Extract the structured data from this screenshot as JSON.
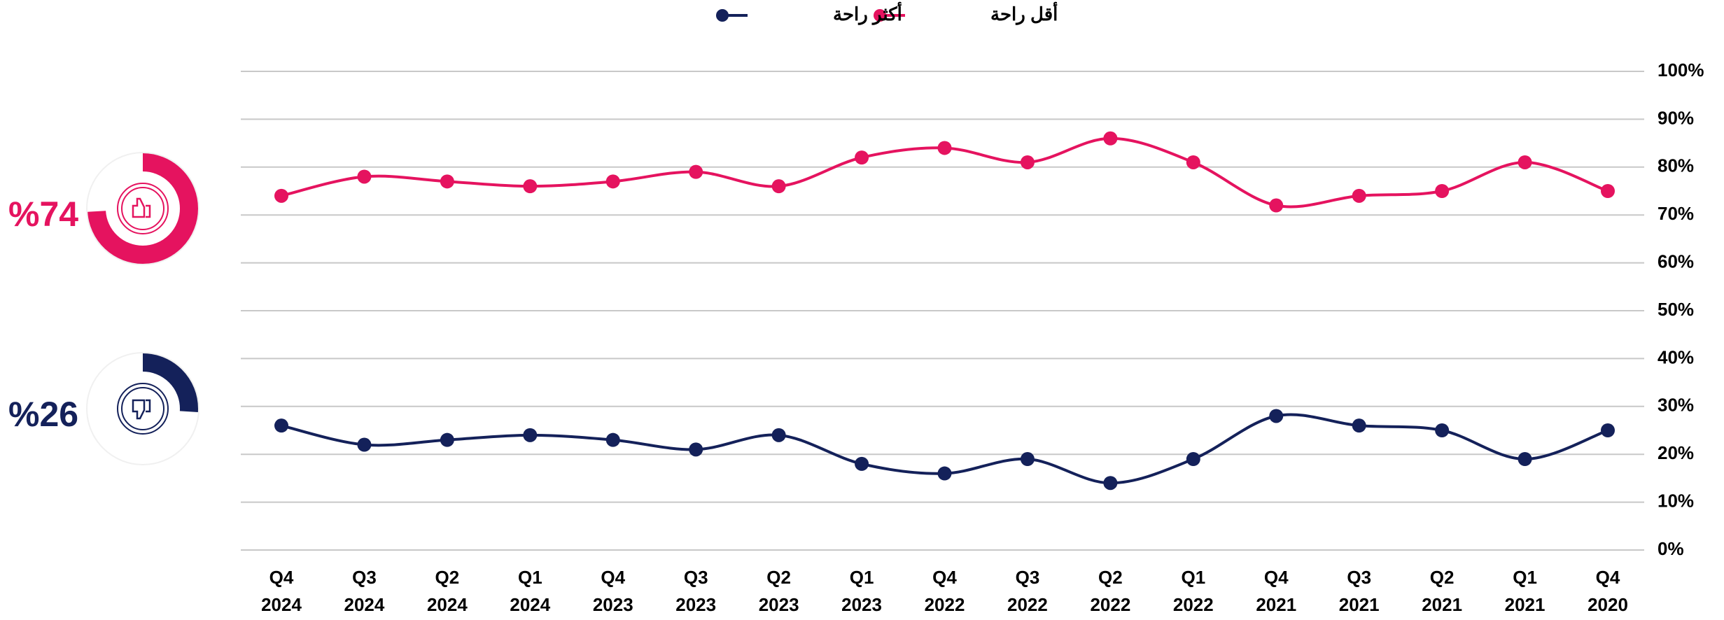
{
  "chart_data": {
    "type": "line",
    "legend_position": "top",
    "grid": true,
    "categories": [
      [
        "Q4",
        "2024"
      ],
      [
        "Q3",
        "2024"
      ],
      [
        "Q2",
        "2024"
      ],
      [
        "Q1",
        "2024"
      ],
      [
        "Q4",
        "2023"
      ],
      [
        "Q3",
        "2023"
      ],
      [
        "Q2",
        "2023"
      ],
      [
        "Q1",
        "2023"
      ],
      [
        "Q4",
        "2022"
      ],
      [
        "Q3",
        "2022"
      ],
      [
        "Q2",
        "2022"
      ],
      [
        "Q1",
        "2022"
      ],
      [
        "Q4",
        "2021"
      ],
      [
        "Q3",
        "2021"
      ],
      [
        "Q2",
        "2021"
      ],
      [
        "Q1",
        "2021"
      ],
      [
        "Q4",
        "2020"
      ]
    ],
    "series": [
      {
        "name": "أقل راحة",
        "color": "#e5135f",
        "values": [
          74,
          78,
          77,
          76,
          77,
          79,
          76,
          82,
          84,
          81,
          86,
          81,
          72,
          74,
          75,
          81,
          75
        ]
      },
      {
        "name": "أكثر راحة",
        "color": "#14215a",
        "values": [
          26,
          22,
          23,
          24,
          23,
          21,
          24,
          18,
          16,
          19,
          14,
          19,
          28,
          26,
          25,
          19,
          25
        ]
      }
    ],
    "ylim": [
      0,
      100
    ],
    "yticks": [
      {
        "value": 0,
        "label": "0%"
      },
      {
        "value": 10,
        "label": "10%"
      },
      {
        "value": 20,
        "label": "20%"
      },
      {
        "value": 30,
        "label": "30%"
      },
      {
        "value": 40,
        "label": "40%"
      },
      {
        "value": 50,
        "label": "50%"
      },
      {
        "value": 60,
        "label": "60%"
      },
      {
        "value": 70,
        "label": "70%"
      },
      {
        "value": 80,
        "label": "80%"
      },
      {
        "value": 90,
        "label": "90%"
      },
      {
        "value": 100,
        "label": "100%"
      }
    ],
    "summary": [
      {
        "values": [
          74
        ],
        "value_labels": [
          "%74"
        ],
        "color": "#e5135f"
      },
      {
        "values": [
          26
        ],
        "value_labels": [
          "%26"
        ],
        "color": "#14215a"
      }
    ]
  }
}
